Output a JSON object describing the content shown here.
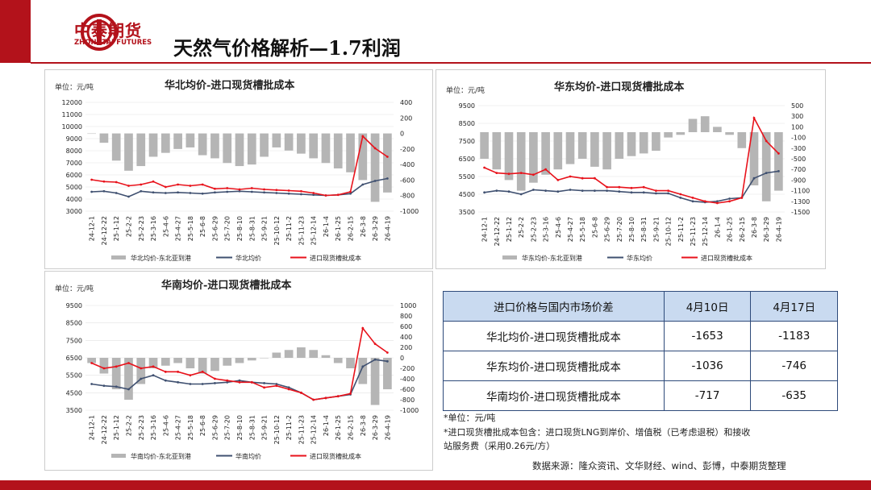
{
  "header": {
    "logo_cn": "中泰期货",
    "logo_en": "ZHONGTAI FUTURES",
    "page_title": "天然气价格解析—1.7利润"
  },
  "charts": {
    "north": {
      "title": "华北均价-进口现货槽批成本",
      "unit": "单位：元/吨"
    },
    "east": {
      "title": "华东均价-进口现货槽批成本",
      "unit": "单位：元/吨"
    },
    "south": {
      "title": "华南均价-进口现货槽批成本",
      "unit": "单位：元/吨"
    }
  },
  "legend": {
    "north": [
      "华北均价-东北亚到港",
      "华北均价",
      "进口现货槽批成本"
    ],
    "east": [
      "华东均价-东北亚到港",
      "华东均价",
      "进口现货槽批成本"
    ],
    "south": [
      "华南均价-东北亚到港",
      "华南均价",
      "进口现货槽批成本"
    ]
  },
  "colors": {
    "bars": "#b5b5b5",
    "avg_line": "#3f5070",
    "cost_line": "#e8121b",
    "brand": "#b3121b"
  },
  "chart_data": [
    {
      "type": "bar",
      "title": "华北均价-进口现货槽批成本",
      "ylabel": "单位：元/吨",
      "x": [
        "24-12-1",
        "24-12-22",
        "25-1-12",
        "25-2-2",
        "25-2-23",
        "25-3-16",
        "25-4-6",
        "25-4-27",
        "25-5-18",
        "25-6-8",
        "25-6-29",
        "25-7-20",
        "25-8-10",
        "25-8-31",
        "25-9-21",
        "25-10-12",
        "25-11-2",
        "25-11-23",
        "25-12-14",
        "26-1-4",
        "26-1-25",
        "26-2-15",
        "26-3-8",
        "26-3-29",
        "26-4-19"
      ],
      "left_ylim": [
        3000,
        12000
      ],
      "left_yticks": [
        3000,
        4000,
        5000,
        6000,
        7000,
        8000,
        9000,
        10000,
        11000,
        12000
      ],
      "right_ylim": [
        -1000,
        400
      ],
      "right_yticks": [
        -1000,
        -800,
        -600,
        -400,
        -200,
        0,
        200,
        400
      ],
      "series": [
        {
          "name": "华北均价-东北亚到港",
          "axis": "right",
          "kind": "bar",
          "values": [
            0,
            -120,
            -350,
            -480,
            -420,
            -300,
            -250,
            -200,
            -180,
            -280,
            -320,
            -380,
            -420,
            -400,
            -300,
            -180,
            -220,
            -260,
            -320,
            -380,
            -450,
            -500,
            -600,
            -880,
            -760
          ]
        },
        {
          "name": "华北均价",
          "axis": "left",
          "kind": "line",
          "values": [
            4600,
            4650,
            4500,
            4200,
            4650,
            4550,
            4500,
            4550,
            4500,
            4450,
            4550,
            4600,
            4650,
            4600,
            4550,
            4500,
            4450,
            4400,
            4350,
            4300,
            4350,
            4450,
            5200,
            5500,
            5700
          ]
        },
        {
          "name": "进口现货槽批成本",
          "axis": "left",
          "kind": "line",
          "values": [
            5600,
            5450,
            5400,
            5100,
            5200,
            5450,
            5000,
            5200,
            5100,
            5200,
            4850,
            4900,
            4800,
            4900,
            4800,
            4750,
            4700,
            4650,
            4500,
            4300,
            4350,
            4600,
            9200,
            8200,
            7500
          ]
        }
      ]
    },
    {
      "type": "bar",
      "title": "华东均价-进口现货槽批成本",
      "ylabel": "单位：元/吨",
      "x": [
        "24-12-1",
        "24-12-22",
        "25-1-12",
        "25-2-2",
        "25-2-23",
        "25-3-16",
        "25-4-6",
        "25-4-27",
        "25-5-18",
        "25-6-8",
        "25-6-29",
        "25-7-20",
        "25-8-10",
        "25-8-31",
        "25-9-21",
        "25-10-12",
        "25-11-2",
        "25-11-23",
        "25-12-14",
        "26-1-4",
        "26-1-25",
        "26-2-15",
        "26-3-8",
        "26-3-29",
        "26-4-19"
      ],
      "left_ylim": [
        3500,
        9500
      ],
      "left_yticks": [
        3500,
        4500,
        5500,
        6500,
        7500,
        8500,
        9500
      ],
      "right_ylim": [
        -1500,
        500
      ],
      "right_yticks": [
        -1500,
        -1300,
        -1100,
        -900,
        -700,
        -500,
        -300,
        -100,
        100,
        300,
        500
      ],
      "series": [
        {
          "name": "华东均价-东北亚到港",
          "axis": "right",
          "kind": "bar",
          "values": [
            -500,
            -700,
            -900,
            -1100,
            -950,
            -800,
            -700,
            -600,
            -500,
            -650,
            -700,
            -500,
            -450,
            -400,
            -350,
            -100,
            -50,
            250,
            300,
            100,
            -50,
            -300,
            -1000,
            -1300,
            -1100
          ]
        },
        {
          "name": "华东均价",
          "axis": "left",
          "kind": "line",
          "values": [
            4600,
            4700,
            4650,
            4500,
            4750,
            4700,
            4650,
            4750,
            4700,
            4700,
            4700,
            4650,
            4600,
            4600,
            4550,
            4550,
            4300,
            4100,
            4050,
            4100,
            4250,
            4300,
            5400,
            5700,
            5800
          ]
        },
        {
          "name": "进口现货槽批成本",
          "axis": "left",
          "kind": "line",
          "values": [
            6000,
            5700,
            5650,
            5700,
            5600,
            5900,
            5300,
            5500,
            5400,
            5400,
            4900,
            4900,
            4850,
            4900,
            4700,
            4700,
            4500,
            4300,
            4100,
            4000,
            4100,
            4300,
            8800,
            7500,
            6800
          ]
        }
      ]
    },
    {
      "type": "bar",
      "title": "华南均价-进口现货槽批成本",
      "ylabel": "单位：元/吨",
      "x": [
        "24-12-1",
        "24-12-22",
        "25-1-12",
        "25-2-2",
        "25-2-23",
        "25-3-16",
        "25-4-6",
        "25-4-27",
        "25-5-18",
        "25-6-8",
        "25-6-29",
        "25-7-20",
        "25-8-10",
        "25-8-31",
        "25-9-21",
        "25-10-12",
        "25-11-2",
        "25-11-23",
        "25-12-14",
        "26-1-4",
        "26-1-25",
        "26-2-15",
        "26-3-8",
        "26-3-29",
        "26-4-19"
      ],
      "left_ylim": [
        3500,
        9500
      ],
      "left_yticks": [
        3500,
        4500,
        5500,
        6500,
        7500,
        8500,
        9500
      ],
      "right_ylim": [
        -1000,
        1000
      ],
      "right_yticks": [
        -1000,
        -800,
        -600,
        -400,
        -200,
        0,
        200,
        400,
        600,
        800,
        1000
      ],
      "series": [
        {
          "name": "华南均价-东北亚到港",
          "axis": "right",
          "kind": "bar",
          "values": [
            -100,
            -300,
            -600,
            -800,
            -500,
            -200,
            -150,
            -100,
            -200,
            -300,
            -250,
            -150,
            -100,
            -50,
            0,
            100,
            150,
            200,
            150,
            50,
            -100,
            -200,
            -500,
            -900,
            -600
          ]
        },
        {
          "name": "华南均价",
          "axis": "left",
          "kind": "line",
          "values": [
            5000,
            4900,
            4850,
            4700,
            5300,
            5500,
            5200,
            5100,
            5000,
            5000,
            5050,
            5100,
            5200,
            5100,
            5050,
            5000,
            4800,
            4500,
            4100,
            4200,
            4300,
            4400,
            6000,
            6400,
            6300
          ]
        },
        {
          "name": "进口现货槽批成本",
          "axis": "left",
          "kind": "line",
          "values": [
            6200,
            5900,
            6000,
            6200,
            5900,
            6000,
            5700,
            5700,
            5500,
            5700,
            5300,
            5200,
            5100,
            5100,
            4800,
            4900,
            4700,
            4500,
            4100,
            4200,
            4300,
            4450,
            8200,
            7300,
            6800
          ]
        }
      ]
    }
  ],
  "table": {
    "header": [
      "进口价格与国内市场价差",
      "4月10日",
      "4月17日"
    ],
    "rows": [
      [
        "华北均价-进口现货槽批成本",
        "-1653",
        "-1183"
      ],
      [
        "华东均价-进口现货槽批成本",
        "-1036",
        "-746"
      ],
      [
        "华南均价-进口现货槽批成本",
        "-717",
        "-635"
      ]
    ]
  },
  "notes": {
    "unit": "*单位：元/吨",
    "cost_line1": "*进口现货槽批成本包含：进口现货LNG到岸价、增值税（已考虑退税）和接收",
    "cost_line2": "站服务费（采用0.26元/方）",
    "source": "数据来源：隆众资讯、文华财经、wind、彭博，中泰期货整理"
  }
}
